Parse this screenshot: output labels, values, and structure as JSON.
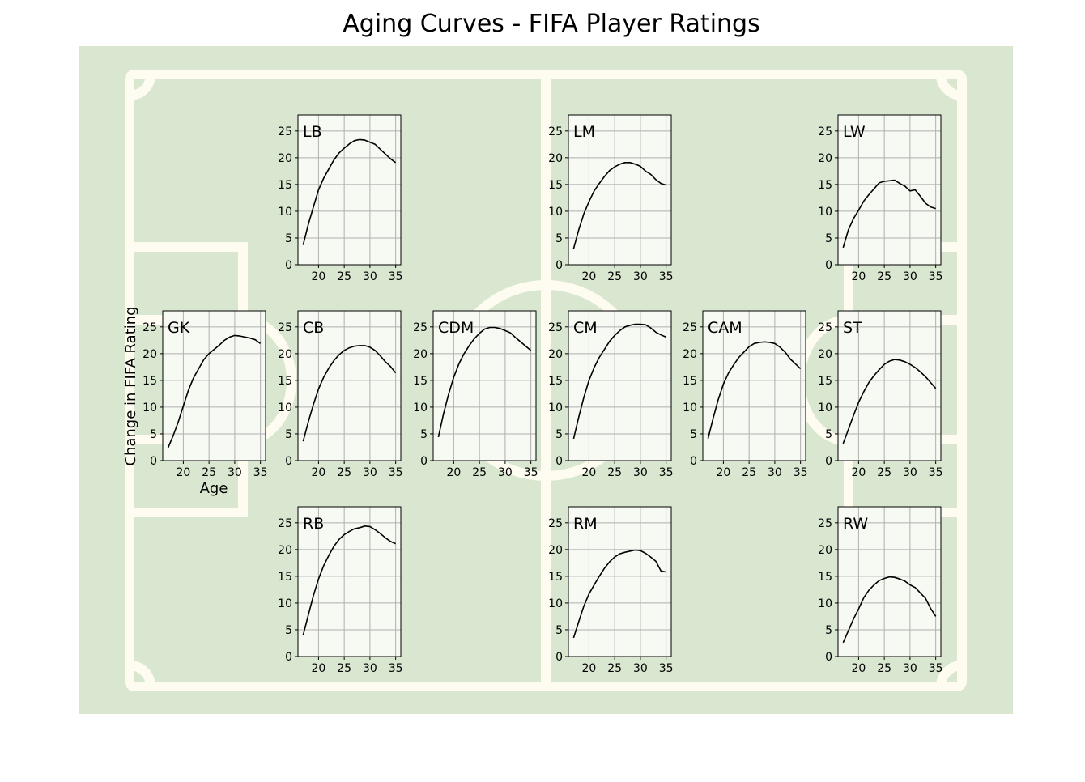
{
  "title": "Aging Curves - FIFA Player Ratings",
  "colors": {
    "pitch": "#d9e7d1",
    "lines": "#fefcf0",
    "panel_bg": "#f7f9f3",
    "grid": "#b0b0b0",
    "curve": "#000000"
  },
  "chart_data": {
    "type": "line",
    "xlabel": "Age",
    "ylabel": "Change in FIFA Rating",
    "xlim": [
      16,
      36
    ],
    "ylim": [
      0,
      28
    ],
    "xticks": [
      20,
      25,
      30,
      35
    ],
    "yticks": [
      0,
      5,
      10,
      15,
      20,
      25
    ],
    "grid": true,
    "x": [
      17,
      18,
      19,
      20,
      21,
      22,
      23,
      24,
      25,
      26,
      27,
      28,
      29,
      30,
      31,
      32,
      33,
      34,
      35
    ],
    "panels": [
      {
        "position": "LB",
        "values": [
          3.7,
          7.5,
          10.8,
          14.0,
          16.2,
          17.9,
          19.6,
          20.9,
          21.8,
          22.6,
          23.2,
          23.4,
          23.3,
          22.9,
          22.5,
          21.6,
          20.7,
          19.8,
          19.1
        ]
      },
      {
        "position": "LM",
        "values": [
          3.0,
          6.5,
          9.5,
          11.8,
          13.8,
          15.2,
          16.5,
          17.6,
          18.3,
          18.8,
          19.1,
          19.1,
          18.8,
          18.4,
          17.5,
          16.9,
          15.9,
          15.2,
          14.9
        ]
      },
      {
        "position": "LW",
        "values": [
          3.2,
          6.5,
          8.6,
          10.2,
          11.9,
          13.1,
          14.2,
          15.3,
          15.6,
          15.7,
          15.8,
          15.2,
          14.7,
          13.8,
          14.0,
          12.8,
          11.5,
          10.8,
          10.5
        ]
      },
      {
        "position": "GK",
        "values": [
          2.3,
          4.6,
          7.2,
          10.2,
          13.2,
          15.5,
          17.2,
          18.9,
          20.0,
          20.8,
          21.6,
          22.5,
          23.1,
          23.4,
          23.3,
          23.1,
          22.9,
          22.6,
          21.9
        ]
      },
      {
        "position": "CB",
        "values": [
          3.6,
          7.2,
          10.5,
          13.4,
          15.6,
          17.3,
          18.7,
          19.8,
          20.6,
          21.1,
          21.4,
          21.5,
          21.5,
          21.2,
          20.6,
          19.6,
          18.5,
          17.6,
          16.4
        ]
      },
      {
        "position": "CDM",
        "values": [
          4.4,
          8.7,
          12.4,
          15.6,
          18.1,
          20.0,
          21.5,
          22.8,
          23.8,
          24.6,
          24.9,
          24.9,
          24.7,
          24.3,
          23.9,
          23.0,
          22.2,
          21.4,
          20.6
        ]
      },
      {
        "position": "CM",
        "values": [
          4.1,
          8.1,
          11.8,
          15.0,
          17.4,
          19.3,
          20.8,
          22.3,
          23.4,
          24.3,
          25.0,
          25.3,
          25.5,
          25.5,
          25.4,
          24.8,
          24.0,
          23.5,
          23.1
        ]
      },
      {
        "position": "CAM",
        "values": [
          4.1,
          7.9,
          11.4,
          14.3,
          16.4,
          17.9,
          19.3,
          20.3,
          21.3,
          21.9,
          22.1,
          22.2,
          22.1,
          21.9,
          21.2,
          20.3,
          19.0,
          18.1,
          17.2
        ]
      },
      {
        "position": "ST",
        "values": [
          3.2,
          5.8,
          8.4,
          10.9,
          12.9,
          14.6,
          15.9,
          17.0,
          18.0,
          18.6,
          18.9,
          18.8,
          18.5,
          18.0,
          17.4,
          16.6,
          15.7,
          14.6,
          13.5
        ]
      },
      {
        "position": "RB",
        "values": [
          4.0,
          7.7,
          11.4,
          14.5,
          17.0,
          18.9,
          20.6,
          21.9,
          22.8,
          23.4,
          23.9,
          24.1,
          24.4,
          24.3,
          23.7,
          23.0,
          22.2,
          21.5,
          21.1
        ]
      },
      {
        "position": "RM",
        "values": [
          3.5,
          6.5,
          9.4,
          11.7,
          13.4,
          15.0,
          16.5,
          17.7,
          18.6,
          19.2,
          19.5,
          19.7,
          19.9,
          19.8,
          19.3,
          18.6,
          17.8,
          16.0,
          15.8
        ]
      },
      {
        "position": "RW",
        "values": [
          2.6,
          4.8,
          7.0,
          8.9,
          11.0,
          12.4,
          13.4,
          14.2,
          14.6,
          14.9,
          14.8,
          14.5,
          14.1,
          13.4,
          12.9,
          11.9,
          10.9,
          9.0,
          7.5
        ]
      }
    ]
  }
}
